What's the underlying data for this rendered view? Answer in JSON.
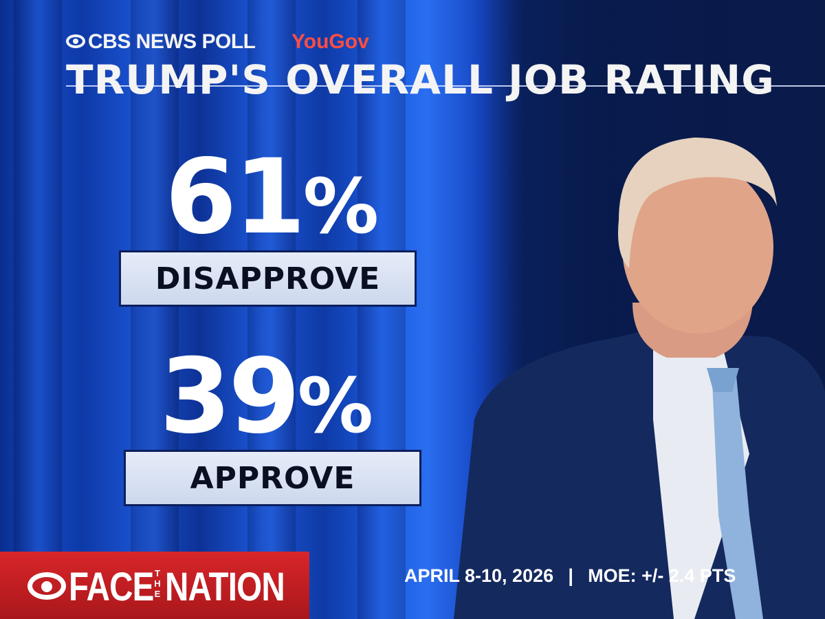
{
  "header": {
    "brand": "CBS NEWS POLL",
    "partner": "YouGov",
    "headline": "TRUMP'S OVERALL JOB RATING"
  },
  "stats": [
    {
      "value": "61",
      "unit": "%",
      "label": "DISAPPROVE"
    },
    {
      "value": "39",
      "unit": "%",
      "label": "APPROVE"
    }
  ],
  "footer": {
    "show_face": "FACE",
    "show_the": "THE",
    "show_nation": "NATION",
    "dates": "APRIL 8-10, 2026",
    "separator": "|",
    "moe": "MOE: +/- 2.4 PTS"
  },
  "colors": {
    "partner": "#ff4d42",
    "show_badge": "#c81e22",
    "background": "#1347c2"
  }
}
